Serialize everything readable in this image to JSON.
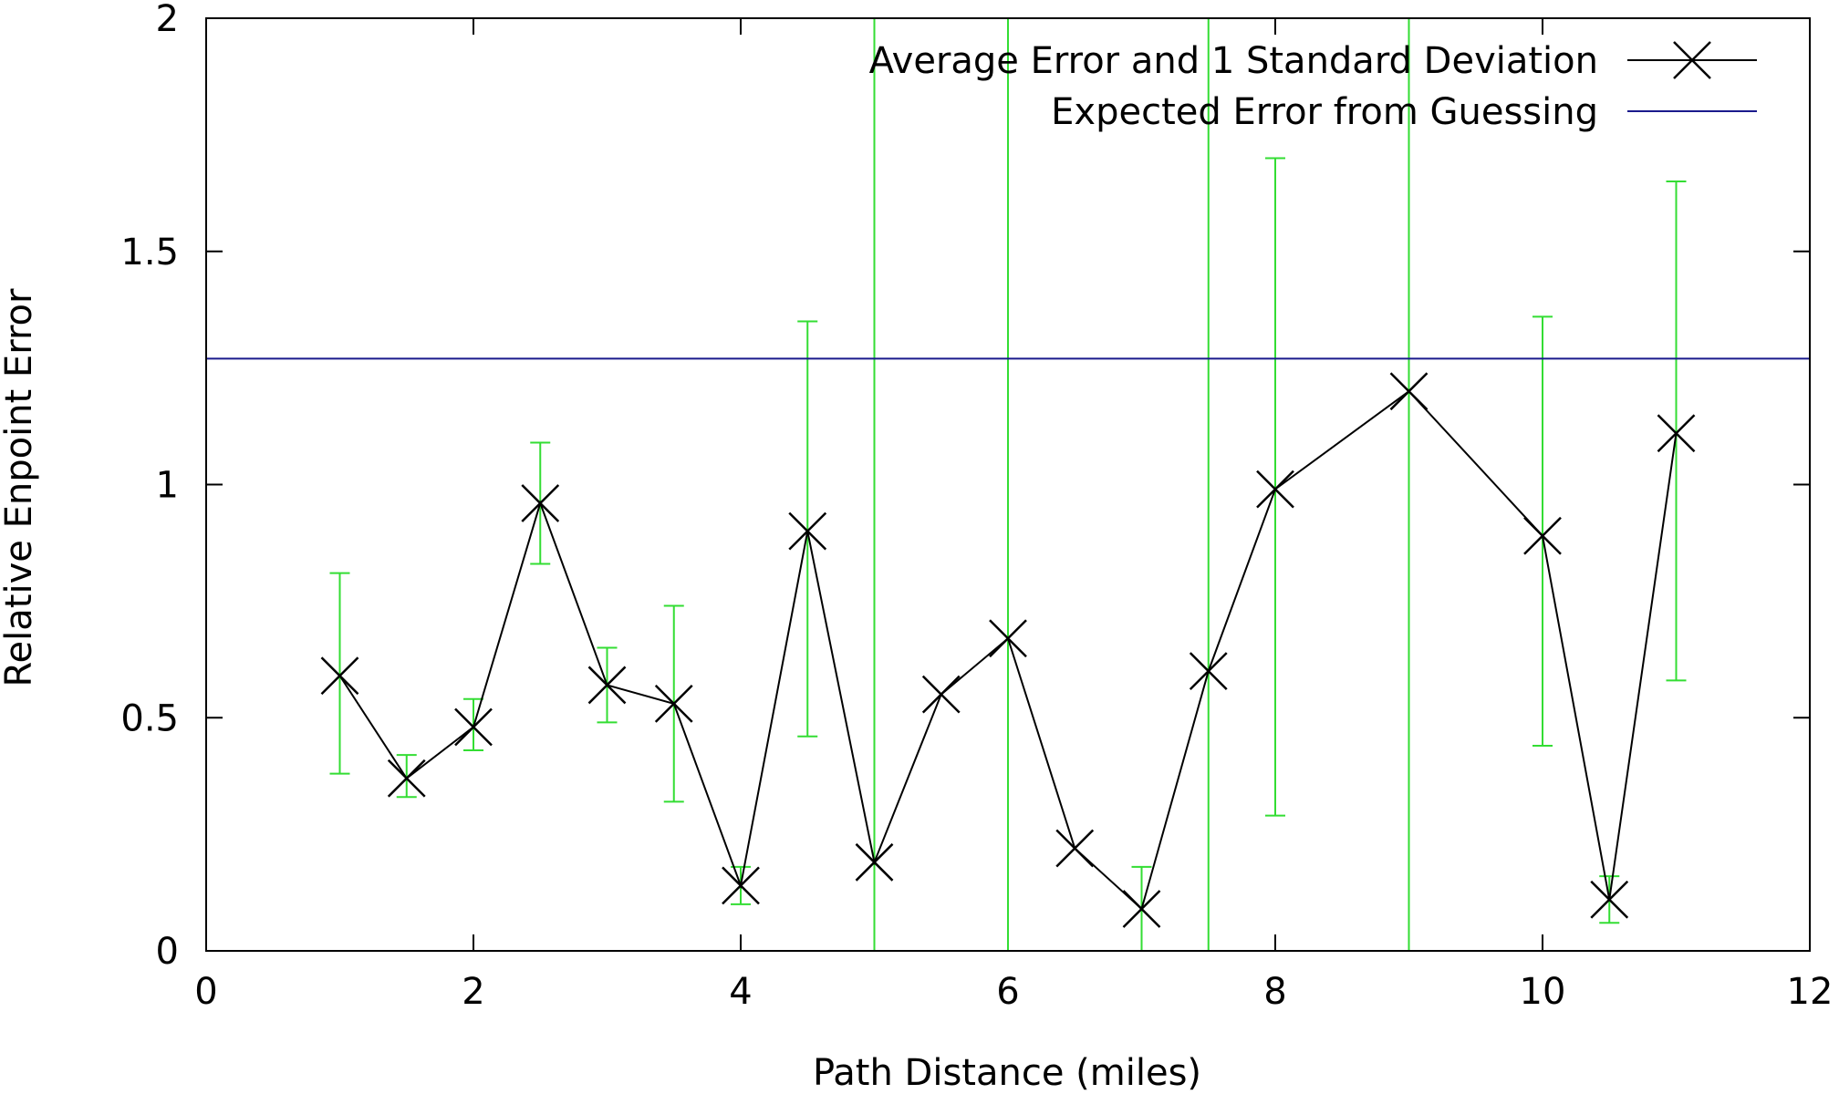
{
  "chart_data": {
    "type": "line",
    "title": "",
    "xlabel": "Path Distance (miles)",
    "ylabel": "Relative Enpoint Error",
    "xlim": [
      0,
      12
    ],
    "ylim": [
      0,
      2
    ],
    "xticks": [
      0,
      2,
      4,
      6,
      8,
      10,
      12
    ],
    "xtick_labels": [
      "0",
      "2",
      "4",
      "6",
      "8",
      "10",
      "12"
    ],
    "yticks": [
      0,
      0.5,
      1,
      1.5,
      2
    ],
    "ytick_labels": [
      "0",
      "0.5",
      "1",
      "1.5",
      "2"
    ],
    "grid": false,
    "legend_position": "top-right",
    "colors": {
      "series": "#000000",
      "error_bars": "#33dd33",
      "guess_line": "#1a1a8c",
      "axes": "#000000"
    },
    "series": [
      {
        "name": "Average Error and 1 Standard Deviation",
        "marker": "x",
        "x": [
          1,
          1.5,
          2,
          2.5,
          3,
          3.5,
          4,
          4.5,
          5,
          5.5,
          6,
          6.5,
          7,
          7.5,
          8,
          9,
          10,
          10.5,
          11
        ],
        "y": [
          0.59,
          0.37,
          0.48,
          0.96,
          0.57,
          0.53,
          0.14,
          0.9,
          0.19,
          0.55,
          0.67,
          0.22,
          0.09,
          0.6,
          0.99,
          1.2,
          0.89,
          0.11,
          1.11
        ],
        "y_low": [
          0.38,
          0.33,
          0.43,
          0.83,
          0.49,
          0.32,
          0.1,
          0.46,
          0,
          0.55,
          0,
          0.22,
          0,
          0,
          0.29,
          0,
          0.44,
          0.06,
          0.58
        ],
        "y_high": [
          0.81,
          0.42,
          0.54,
          1.09,
          0.65,
          0.74,
          0.18,
          1.35,
          2,
          0.55,
          2,
          0.22,
          0.18,
          2,
          1.7,
          2,
          1.36,
          0.16,
          1.65
        ]
      },
      {
        "name": "Expected Error from Guessing",
        "type": "hline",
        "y": 1.27
      }
    ],
    "legend": [
      {
        "label": "Average Error and 1 Standard Deviation",
        "style": "line-x"
      },
      {
        "label": "Expected Error from Guessing",
        "style": "line"
      }
    ]
  }
}
